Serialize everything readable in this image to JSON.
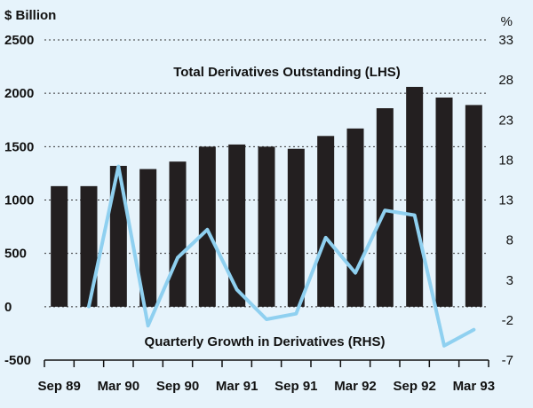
{
  "chart_data": {
    "type": "bar",
    "left_unit": "$ Billion",
    "right_unit": "%",
    "left_ticks": [
      "2500",
      "2000",
      "1500",
      "1000",
      "500",
      "0",
      "-500"
    ],
    "left_tick_values": [
      2500,
      2000,
      1500,
      1000,
      500,
      0,
      -500
    ],
    "right_ticks": [
      "33",
      "28",
      "23",
      "18",
      "13",
      "8",
      "3",
      "-2",
      "-7"
    ],
    "right_tick_values": [
      33,
      28,
      23,
      18,
      13,
      8,
      3,
      -2,
      -7
    ],
    "ylim_left": [
      -500,
      2500
    ],
    "ylim_right": [
      -7,
      33
    ],
    "x_tick_labels": [
      "Sep 89",
      "Mar 90",
      "Sep 90",
      "Mar 91",
      "Sep 91",
      "Mar 92",
      "Sep 92",
      "Mar 93"
    ],
    "categories": [
      "Sep 89",
      "Dec 89",
      "Mar 90",
      "Jun 90",
      "Sep 90",
      "Dec 90",
      "Mar 91",
      "Jun 91",
      "Sep 91",
      "Dec 91",
      "Mar 92",
      "Jun 92",
      "Sep 92",
      "Dec 92",
      "Mar 93"
    ],
    "series": [
      {
        "name": "Total Derivatives Outstanding (LHS)",
        "axis": "left",
        "type": "bar",
        "color": "#231f20",
        "values": [
          1130,
          1130,
          1320,
          1290,
          1360,
          1500,
          1520,
          1500,
          1480,
          1600,
          1670,
          1860,
          2060,
          1960,
          1890
        ]
      },
      {
        "name": "Quarterly Growth in Derivatives (RHS)",
        "axis": "right",
        "type": "line",
        "color": "#8fd0f0",
        "values": [
          null,
          -0.3,
          17.2,
          -2.7,
          5.8,
          9.3,
          1.8,
          -1.9,
          -1.2,
          8.3,
          3.9,
          11.7,
          11.1,
          -5.2,
          -3.2
        ]
      }
    ],
    "annotations": {
      "bars_label": "Total Derivatives Outstanding (LHS)",
      "line_label": "Quarterly Growth in Derivatives (RHS)"
    }
  }
}
